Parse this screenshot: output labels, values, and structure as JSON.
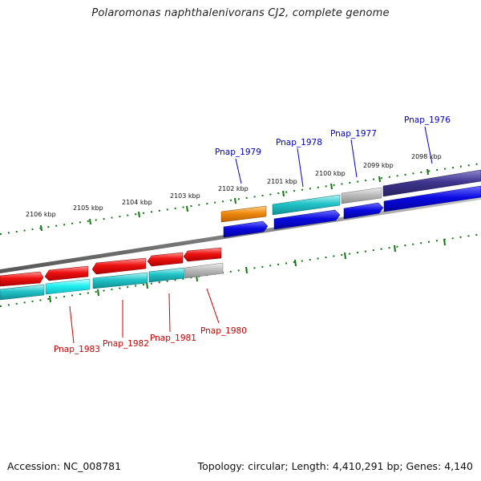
{
  "title": "Polaromonas naphthalenivorans CJ2, complete genome",
  "footer": {
    "accession": "Accession: NC_008781",
    "summary": "Topology: circular; Length: 4,410,291 bp; Genes: 4,140"
  },
  "ticks": [
    "2106 kbp",
    "2105 kbp",
    "2104 kbp",
    "2103 kbp",
    "2102 kbp",
    "2101 kbp",
    "2100 kbp",
    "2099 kbp",
    "2098 kbp"
  ],
  "upper_labels": [
    "Pnap_1979",
    "Pnap_1978",
    "Pnap_1977",
    "Pnap_1976"
  ],
  "lower_labels": [
    "Pnap_1983",
    "Pnap_1982",
    "Pnap_1981",
    "Pnap_1980"
  ],
  "colors": {
    "upper_label": "#0000cc",
    "lower_label": "#cc0000",
    "red_gene": "#ee1111",
    "cyan_gene": "#22c4c8",
    "blue_gene": "#0a0ae0",
    "orange_gene": "#f08a10",
    "gray_gene": "#bdbdbd",
    "purple_gene": "#3f3590",
    "backbone": "#888888",
    "tick": "#117711"
  }
}
